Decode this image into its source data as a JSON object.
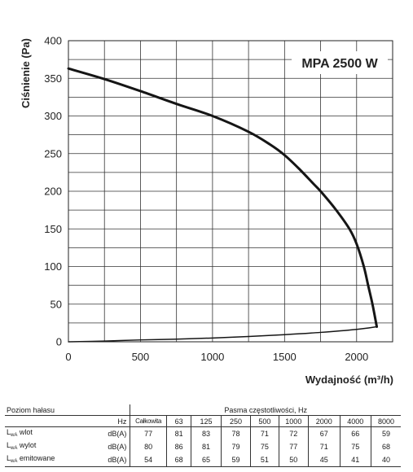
{
  "chart_data": {
    "type": "line",
    "title": "MPA 2500 W",
    "xlabel": "Wydajność (m³/h)",
    "ylabel": "Ciśnienie (Pa)",
    "xlim": [
      0,
      2250
    ],
    "ylim": [
      0,
      400
    ],
    "xticks": [
      0,
      500,
      1000,
      1500,
      2000
    ],
    "yticks": [
      0,
      50,
      100,
      150,
      200,
      250,
      300,
      350,
      400
    ],
    "grid": true,
    "series": [
      {
        "x": [
          0,
          250,
          500,
          750,
          1000,
          1250,
          1400,
          1500,
          1600,
          1700,
          1750,
          1850,
          1950,
          2000,
          2050,
          2080,
          2110,
          2140
        ],
        "y": [
          363,
          349,
          333,
          316,
          300,
          279,
          262,
          248,
          230,
          210,
          200,
          177,
          150,
          130,
          100,
          75,
          50,
          20
        ]
      },
      {
        "x": [
          0,
          250,
          500,
          750,
          1000,
          1250,
          1500,
          1750,
          2000,
          2140
        ],
        "y": [
          0,
          1,
          2.5,
          3.5,
          5,
          7,
          9.5,
          12.5,
          16.5,
          20
        ]
      }
    ]
  },
  "noise_table": {
    "row_header": "Poziom hałasu",
    "group_header": "Pasma częstotliwości, Hz",
    "unit_header": "Hz",
    "columns": [
      "Całkowita",
      "63",
      "125",
      "250",
      "500",
      "1000",
      "2000",
      "4000",
      "8000"
    ],
    "rows": [
      {
        "label_main": "L",
        "label_sub": "wA",
        "label_rest": " wlot",
        "unit": "dB(A)",
        "values": [
          "77",
          "81",
          "83",
          "78",
          "71",
          "72",
          "67",
          "66",
          "59"
        ]
      },
      {
        "label_main": "L",
        "label_sub": "wA",
        "label_rest": " wylot",
        "unit": "dB(A)",
        "values": [
          "80",
          "86",
          "81",
          "79",
          "75",
          "77",
          "71",
          "75",
          "68"
        ]
      },
      {
        "label_main": "L",
        "label_sub": "wA",
        "label_rest": " emitowane",
        "unit": "dB(A)",
        "values": [
          "54",
          "68",
          "65",
          "59",
          "51",
          "50",
          "45",
          "41",
          "40"
        ]
      }
    ]
  }
}
